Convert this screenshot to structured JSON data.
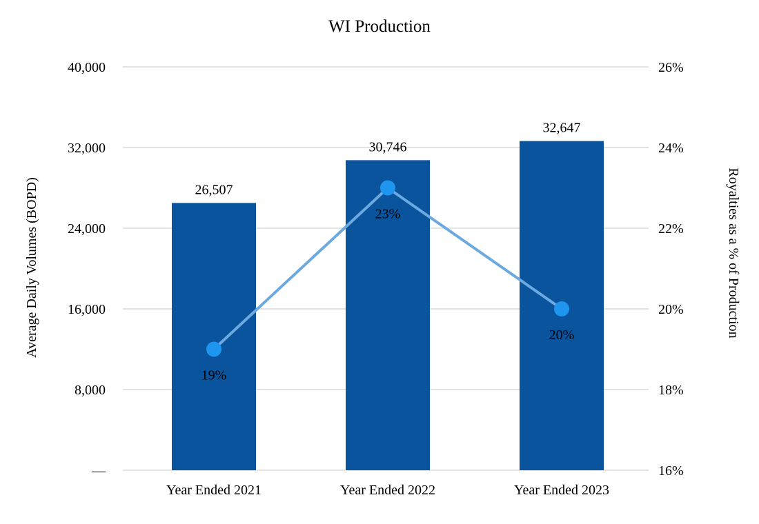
{
  "chart_data": {
    "type": "bar",
    "subtype": "bar-line-combo",
    "title": "WI Production",
    "categories": [
      "Year Ended 2021",
      "Year Ended 2022",
      "Year Ended 2023"
    ],
    "series": [
      {
        "name": "Average Daily Volumes (BOPD)",
        "type": "bar",
        "axis": "left",
        "values": [
          26507,
          30746,
          32647
        ],
        "value_labels": [
          "26,507",
          "30,746",
          "32,647"
        ],
        "color": "#0A549E",
        "label_color": "#000000"
      },
      {
        "name": "Royalties as a % of Production",
        "type": "line",
        "axis": "right",
        "values": [
          19,
          23,
          20
        ],
        "value_labels": [
          "19%",
          "23%",
          "20%"
        ],
        "line_color": "#6CA9DF",
        "marker_color": "#1E96F0",
        "label_color": "#FFFFFF"
      }
    ],
    "left_axis": {
      "label": "Average Daily Volumes (BOPD)",
      "min": 0,
      "max": 40000,
      "tick_step": 8000,
      "tick_labels_top_to_bottom": [
        "40,000",
        "32,000",
        "24,000",
        "16,000",
        "8,000",
        "—"
      ]
    },
    "right_axis": {
      "label": "Royalties as a % of Production",
      "min": 16,
      "max": 26,
      "tick_step": 2,
      "tick_labels_top_to_bottom": [
        "26%",
        "24%",
        "22%",
        "20%",
        "18%",
        "16%"
      ]
    },
    "grid": true,
    "legend": "none",
    "colors": {
      "gridline": "#D9D9D9",
      "text": "#000000",
      "background": "#FFFFFF"
    }
  }
}
